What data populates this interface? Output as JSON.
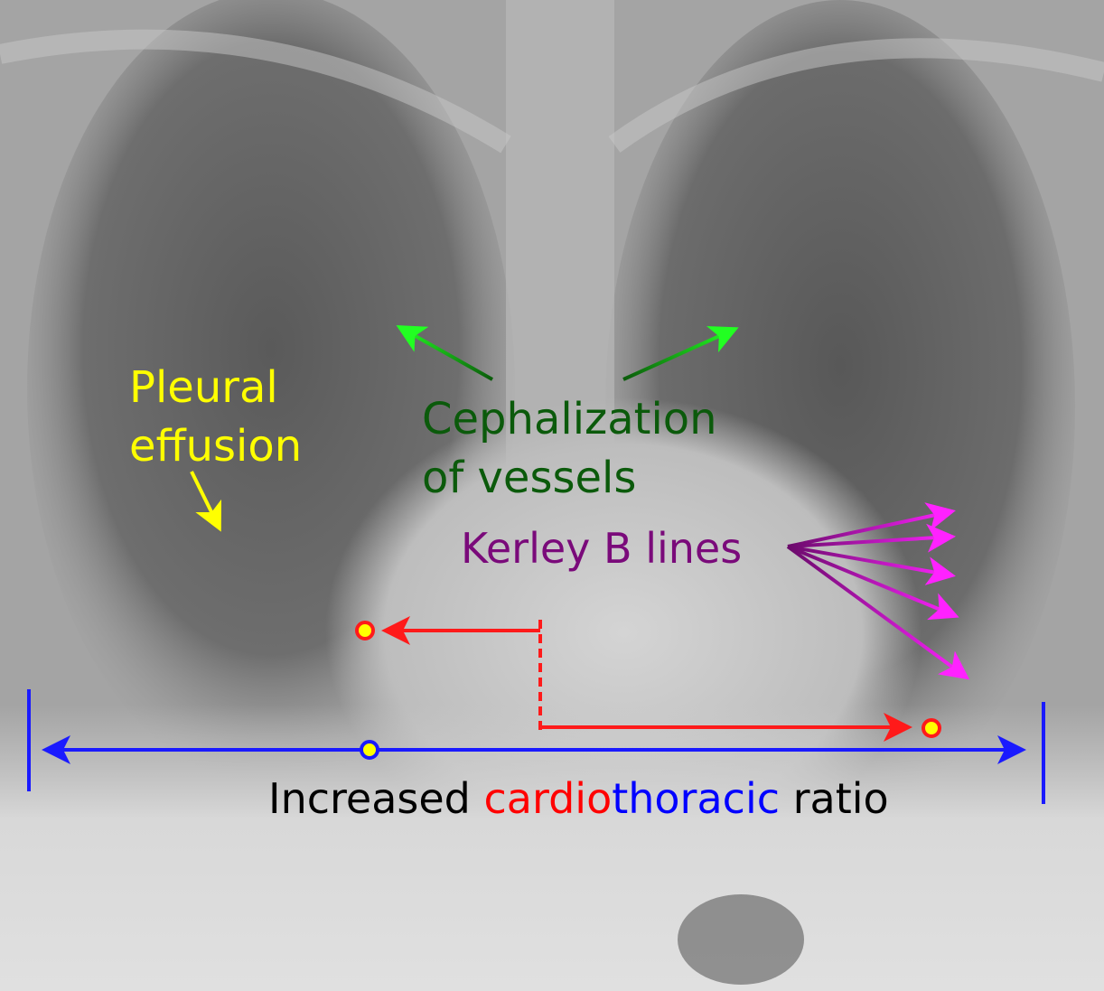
{
  "image": {
    "kind": "chest x-ray, frontal view"
  },
  "annotations": {
    "pleural_effusion": {
      "line1": "Pleural",
      "line2": "effusion",
      "color": "#ffff00"
    },
    "cephalization": {
      "line1": "Cephalization",
      "line2": "of vessels",
      "color": "#0b5a0b",
      "arrow_tip_color": "#22ff22"
    },
    "kerley": {
      "label": "Kerley B lines",
      "color": "#7a0a7a",
      "arrow_tip_color": "#ff22ff"
    },
    "ctr": {
      "word1": "Increased",
      "word2": "cardio",
      "word3": "thoracic",
      "word4": "ratio",
      "color_text": "#000000",
      "color_cardio": "#ff0000",
      "color_thoracic": "#0000ff",
      "color_ratio": "#000000"
    }
  }
}
